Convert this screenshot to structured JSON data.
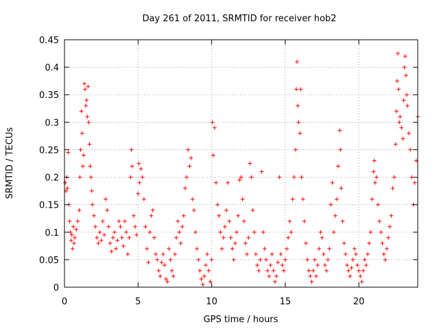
{
  "chart_data": {
    "type": "scatter",
    "title": "Day 261 of 2011, SRMTID for receiver hob2",
    "xlabel": "GPS time / hours",
    "ylabel": "SRMTID / TECUs",
    "xlim": [
      0,
      24
    ],
    "ylim": [
      0,
      0.45
    ],
    "xticks": [
      0,
      5,
      10,
      15,
      20
    ],
    "yticks": [
      0,
      0.05,
      0.1,
      0.15,
      0.2,
      0.25,
      0.3,
      0.35,
      0.4,
      0.45
    ],
    "ytick_labels": [
      "0",
      "0.05",
      "0.1",
      "0.15",
      "0.2",
      "0.25",
      "0.3",
      "0.35",
      "0.4",
      "0.45"
    ],
    "xtick_labels": [
      "0",
      "5",
      "10",
      "15",
      "20"
    ],
    "grid": true,
    "marker": "+",
    "colors": {
      "marker": "#ff0000",
      "frame": "#000000",
      "grid": "#a0a0a0"
    },
    "series": [
      {
        "points": [
          [
            0.05,
            0.19
          ],
          [
            0.1,
            0.175
          ],
          [
            0.15,
            0.2
          ],
          [
            0.2,
            0.18
          ],
          [
            0.25,
            0.245
          ],
          [
            0.3,
            0.15
          ],
          [
            0.35,
            0.12
          ],
          [
            0.4,
            0.1
          ],
          [
            0.45,
            0.085
          ],
          [
            0.5,
            0.095
          ],
          [
            0.55,
            0.07
          ],
          [
            0.6,
            0.11
          ],
          [
            0.65,
            0.08
          ],
          [
            0.7,
            0.09
          ],
          [
            0.8,
            0.105
          ],
          [
            0.9,
            0.12
          ],
          [
            1.0,
            0.14
          ],
          [
            1.05,
            0.2
          ],
          [
            1.1,
            0.25
          ],
          [
            1.15,
            0.32
          ],
          [
            1.2,
            0.28
          ],
          [
            1.25,
            0.22
          ],
          [
            1.3,
            0.24
          ],
          [
            1.35,
            0.37
          ],
          [
            1.4,
            0.36
          ],
          [
            1.45,
            0.33
          ],
          [
            1.5,
            0.34
          ],
          [
            1.55,
            0.31
          ],
          [
            1.6,
            0.365
          ],
          [
            1.65,
            0.3
          ],
          [
            1.7,
            0.26
          ],
          [
            1.75,
            0.22
          ],
          [
            1.8,
            0.2
          ],
          [
            1.85,
            0.175
          ],
          [
            1.9,
            0.15
          ],
          [
            2.0,
            0.13
          ],
          [
            2.1,
            0.11
          ],
          [
            2.2,
            0.09
          ],
          [
            2.3,
            0.08
          ],
          [
            2.4,
            0.1
          ],
          [
            2.5,
            0.085
          ],
          [
            2.6,
            0.12
          ],
          [
            2.7,
            0.095
          ],
          [
            2.8,
            0.16
          ],
          [
            2.9,
            0.14
          ],
          [
            3.0,
            0.11
          ],
          [
            3.1,
            0.08
          ],
          [
            3.2,
            0.065
          ],
          [
            3.3,
            0.09
          ],
          [
            3.4,
            0.1
          ],
          [
            3.5,
            0.07
          ],
          [
            3.6,
            0.085
          ],
          [
            3.7,
            0.12
          ],
          [
            3.8,
            0.11
          ],
          [
            3.9,
            0.09
          ],
          [
            4.0,
            0.075
          ],
          [
            4.1,
            0.12
          ],
          [
            4.2,
            0.1
          ],
          [
            4.3,
            0.06
          ],
          [
            4.4,
            0.09
          ],
          [
            4.5,
            0.2
          ],
          [
            4.55,
            0.25
          ],
          [
            4.6,
            0.22
          ],
          [
            4.7,
            0.13
          ],
          [
            4.8,
            0.11
          ],
          [
            4.9,
            0.095
          ],
          [
            5.0,
            0.17
          ],
          [
            5.05,
            0.225
          ],
          [
            5.1,
            0.19
          ],
          [
            5.2,
            0.215
          ],
          [
            5.3,
            0.2
          ],
          [
            5.4,
            0.16
          ],
          [
            5.5,
            0.11
          ],
          [
            5.6,
            0.07
          ],
          [
            5.7,
            0.045
          ],
          [
            5.8,
            0.1
          ],
          [
            5.9,
            0.13
          ],
          [
            6.0,
            0.14
          ],
          [
            6.1,
            0.09
          ],
          [
            6.2,
            0.06
          ],
          [
            6.3,
            0.05
          ],
          [
            6.4,
            0.03
          ],
          [
            6.5,
            0.02
          ],
          [
            6.6,
            0.045
          ],
          [
            6.7,
            0.06
          ],
          [
            6.8,
            0.04
          ],
          [
            6.9,
            0.015
          ],
          [
            7.0,
            0.01
          ],
          [
            7.1,
            0.07
          ],
          [
            7.2,
            0.05
          ],
          [
            7.3,
            0.03
          ],
          [
            7.4,
            0.02
          ],
          [
            7.5,
            0.06
          ],
          [
            7.6,
            0.09
          ],
          [
            7.7,
            0.12
          ],
          [
            7.8,
            0.1
          ],
          [
            7.9,
            0.08
          ],
          [
            8.0,
            0.11
          ],
          [
            8.1,
            0.13
          ],
          [
            8.2,
            0.18
          ],
          [
            8.3,
            0.2
          ],
          [
            8.4,
            0.25
          ],
          [
            8.5,
            0.22
          ],
          [
            8.6,
            0.235
          ],
          [
            8.7,
            0.16
          ],
          [
            8.8,
            0.14
          ],
          [
            8.9,
            0.1
          ],
          [
            9.0,
            0.07
          ],
          [
            9.1,
            0.05
          ],
          [
            9.2,
            0.03
          ],
          [
            9.3,
            0.015
          ],
          [
            9.4,
            0.005
          ],
          [
            9.5,
            0.02
          ],
          [
            9.6,
            0.04
          ],
          [
            9.7,
            0.06
          ],
          [
            9.8,
            0.03
          ],
          [
            9.9,
            0.01
          ],
          [
            10.0,
            0.05
          ],
          [
            10.05,
            0.3
          ],
          [
            10.1,
            0.24
          ],
          [
            10.2,
            0.29
          ],
          [
            10.3,
            0.19
          ],
          [
            10.4,
            0.15
          ],
          [
            10.5,
            0.13
          ],
          [
            10.6,
            0.1
          ],
          [
            10.7,
            0.07
          ],
          [
            10.8,
            0.09
          ],
          [
            10.9,
            0.11
          ],
          [
            11.0,
            0.14
          ],
          [
            11.1,
            0.19
          ],
          [
            11.2,
            0.12
          ],
          [
            11.3,
            0.09
          ],
          [
            11.4,
            0.07
          ],
          [
            11.5,
            0.05
          ],
          [
            11.6,
            0.08
          ],
          [
            11.7,
            0.1
          ],
          [
            11.8,
            0.13
          ],
          [
            11.9,
            0.195
          ],
          [
            12.0,
            0.2
          ],
          [
            12.1,
            0.16
          ],
          [
            12.2,
            0.12
          ],
          [
            12.3,
            0.08
          ],
          [
            12.4,
            0.06
          ],
          [
            12.5,
            0.09
          ],
          [
            12.6,
            0.225
          ],
          [
            12.7,
            0.2
          ],
          [
            12.8,
            0.14
          ],
          [
            12.9,
            0.1
          ],
          [
            13.0,
            0.06
          ],
          [
            13.1,
            0.04
          ],
          [
            13.2,
            0.03
          ],
          [
            13.3,
            0.05
          ],
          [
            13.4,
            0.21
          ],
          [
            13.5,
            0.1
          ],
          [
            13.6,
            0.07
          ],
          [
            13.7,
            0.05
          ],
          [
            13.8,
            0.03
          ],
          [
            13.9,
            0.02
          ],
          [
            14.0,
            0.04
          ],
          [
            14.1,
            0.06
          ],
          [
            14.2,
            0.03
          ],
          [
            14.3,
            0.01
          ],
          [
            14.4,
            0.02
          ],
          [
            14.5,
            0.045
          ],
          [
            14.6,
            0.2
          ],
          [
            14.7,
            0.06
          ],
          [
            14.8,
            0.04
          ],
          [
            14.9,
            0.03
          ],
          [
            15.0,
            0.05
          ],
          [
            15.1,
            0.07
          ],
          [
            15.2,
            0.09
          ],
          [
            15.3,
            0.12
          ],
          [
            15.4,
            0.1
          ],
          [
            15.5,
            0.16
          ],
          [
            15.6,
            0.2
          ],
          [
            15.7,
            0.25
          ],
          [
            15.75,
            0.36
          ],
          [
            15.8,
            0.41
          ],
          [
            15.85,
            0.33
          ],
          [
            15.9,
            0.3
          ],
          [
            16.0,
            0.28
          ],
          [
            16.05,
            0.36
          ],
          [
            16.1,
            0.2
          ],
          [
            16.2,
            0.16
          ],
          [
            16.3,
            0.12
          ],
          [
            16.4,
            0.08
          ],
          [
            16.5,
            0.05
          ],
          [
            16.6,
            0.03
          ],
          [
            16.7,
            0.02
          ],
          [
            16.8,
            0.01
          ],
          [
            16.9,
            0.03
          ],
          [
            17.0,
            0.05
          ],
          [
            17.1,
            0.02
          ],
          [
            17.2,
            0.04
          ],
          [
            17.3,
            0.07
          ],
          [
            17.4,
            0.1
          ],
          [
            17.5,
            0.09
          ],
          [
            17.6,
            0.06
          ],
          [
            17.7,
            0.04
          ],
          [
            17.8,
            0.03
          ],
          [
            17.9,
            0.05
          ],
          [
            18.0,
            0.07
          ],
          [
            18.1,
            0.15
          ],
          [
            18.2,
            0.19
          ],
          [
            18.3,
            0.1
          ],
          [
            18.4,
            0.13
          ],
          [
            18.5,
            0.16
          ],
          [
            18.6,
            0.22
          ],
          [
            18.7,
            0.285
          ],
          [
            18.75,
            0.25
          ],
          [
            18.8,
            0.18
          ],
          [
            18.9,
            0.12
          ],
          [
            19.0,
            0.08
          ],
          [
            19.1,
            0.06
          ],
          [
            19.2,
            0.04
          ],
          [
            19.3,
            0.03
          ],
          [
            19.4,
            0.02
          ],
          [
            19.5,
            0.035
          ],
          [
            19.6,
            0.05
          ],
          [
            19.7,
            0.07
          ],
          [
            19.8,
            0.06
          ],
          [
            19.9,
            0.04
          ],
          [
            20.0,
            0.03
          ],
          [
            20.1,
            0.02
          ],
          [
            20.2,
            0.01
          ],
          [
            20.3,
            0.03
          ],
          [
            20.4,
            0.05
          ],
          [
            20.5,
            0.04
          ],
          [
            20.6,
            0.06
          ],
          [
            20.7,
            0.08
          ],
          [
            20.8,
            0.1
          ],
          [
            20.9,
            0.16
          ],
          [
            21.0,
            0.21
          ],
          [
            21.05,
            0.23
          ],
          [
            21.1,
            0.19
          ],
          [
            21.2,
            0.2
          ],
          [
            21.3,
            0.15
          ],
          [
            21.4,
            0.12
          ],
          [
            21.5,
            0.1
          ],
          [
            21.6,
            0.08
          ],
          [
            21.7,
            0.06
          ],
          [
            21.8,
            0.05
          ],
          [
            21.9,
            0.07
          ],
          [
            22.0,
            0.09
          ],
          [
            22.1,
            0.11
          ],
          [
            22.2,
            0.13
          ],
          [
            22.3,
            0.18
          ],
          [
            22.4,
            0.2
          ],
          [
            22.5,
            0.26
          ],
          [
            22.55,
            0.32
          ],
          [
            22.6,
            0.375
          ],
          [
            22.65,
            0.425
          ],
          [
            22.7,
            0.36
          ],
          [
            22.75,
            0.3
          ],
          [
            22.8,
            0.31
          ],
          [
            22.9,
            0.29
          ],
          [
            23.0,
            0.27
          ],
          [
            23.05,
            0.34
          ],
          [
            23.1,
            0.4
          ],
          [
            23.15,
            0.42
          ],
          [
            23.2,
            0.385
          ],
          [
            23.25,
            0.35
          ],
          [
            23.3,
            0.33
          ],
          [
            23.4,
            0.28
          ],
          [
            23.5,
            0.25
          ],
          [
            23.6,
            0.2
          ],
          [
            23.7,
            0.15
          ],
          [
            23.8,
            0.19
          ],
          [
            23.9,
            0.23
          ],
          [
            24.0,
            0.31
          ]
        ]
      }
    ]
  }
}
